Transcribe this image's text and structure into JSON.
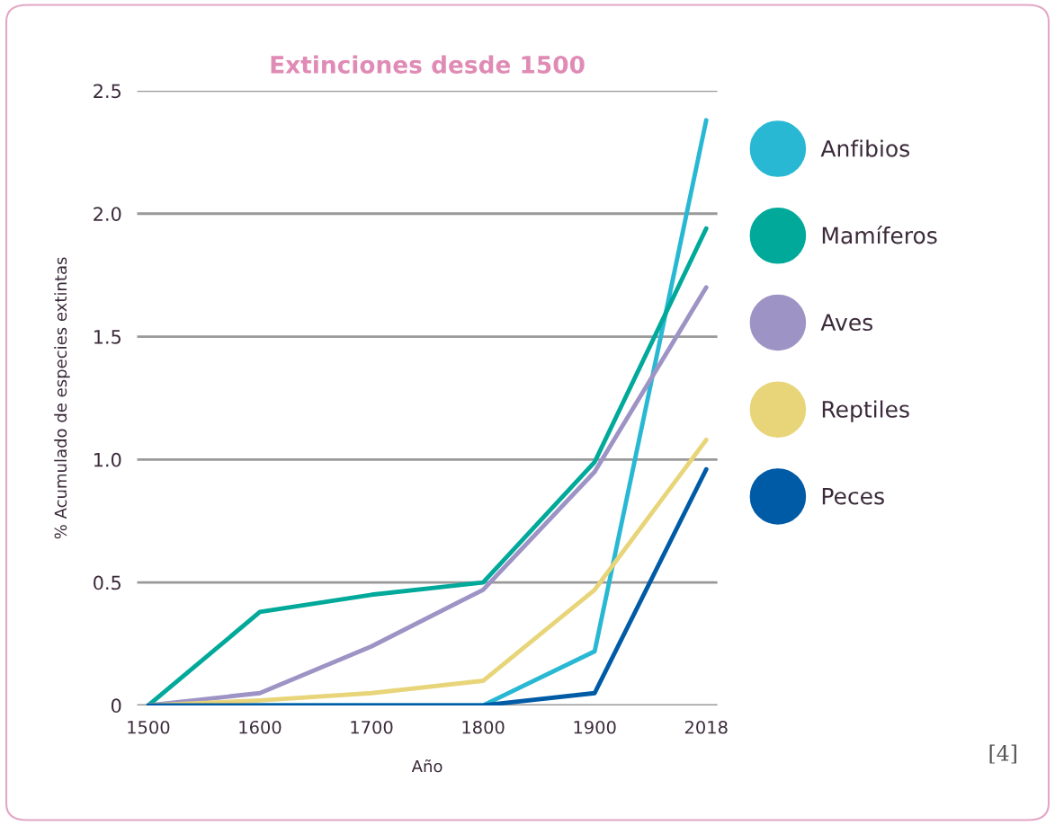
{
  "chart_data": {
    "type": "line",
    "title": "Extinciones desde 1500",
    "xlabel": "Año",
    "ylabel": "% Acumulado de especies extintas",
    "categories": [
      "1500",
      "1600",
      "1700",
      "1800",
      "1900",
      "2018"
    ],
    "series": [
      {
        "name": "Anfibios",
        "color": "#29b8d3",
        "values": [
          0,
          0,
          0,
          0,
          0.22,
          2.38
        ]
      },
      {
        "name": "Mamíferos",
        "color": "#00a99a",
        "values": [
          0,
          0.38,
          0.45,
          0.5,
          0.99,
          1.94
        ]
      },
      {
        "name": "Aves",
        "color": "#9e93c5",
        "values": [
          0,
          0.05,
          0.24,
          0.47,
          0.95,
          1.7
        ]
      },
      {
        "name": "Reptiles",
        "color": "#e8d57a",
        "values": [
          0,
          0.02,
          0.05,
          0.1,
          0.47,
          1.08
        ]
      },
      {
        "name": "Peces",
        "color": "#005ba6",
        "values": [
          0,
          0,
          0,
          0,
          0.05,
          0.96
        ]
      }
    ],
    "ylim": [
      0,
      2.5
    ],
    "yticks": [
      0,
      0.5,
      {
        "value": 1,
        "label": "1.0"
      },
      1.5,
      {
        "value": 2,
        "label": "2.0"
      },
      2.5
    ],
    "grid": "y",
    "legend": "right",
    "marker": "none",
    "line_style": "solid",
    "annotations": [
      "[4]"
    ]
  }
}
